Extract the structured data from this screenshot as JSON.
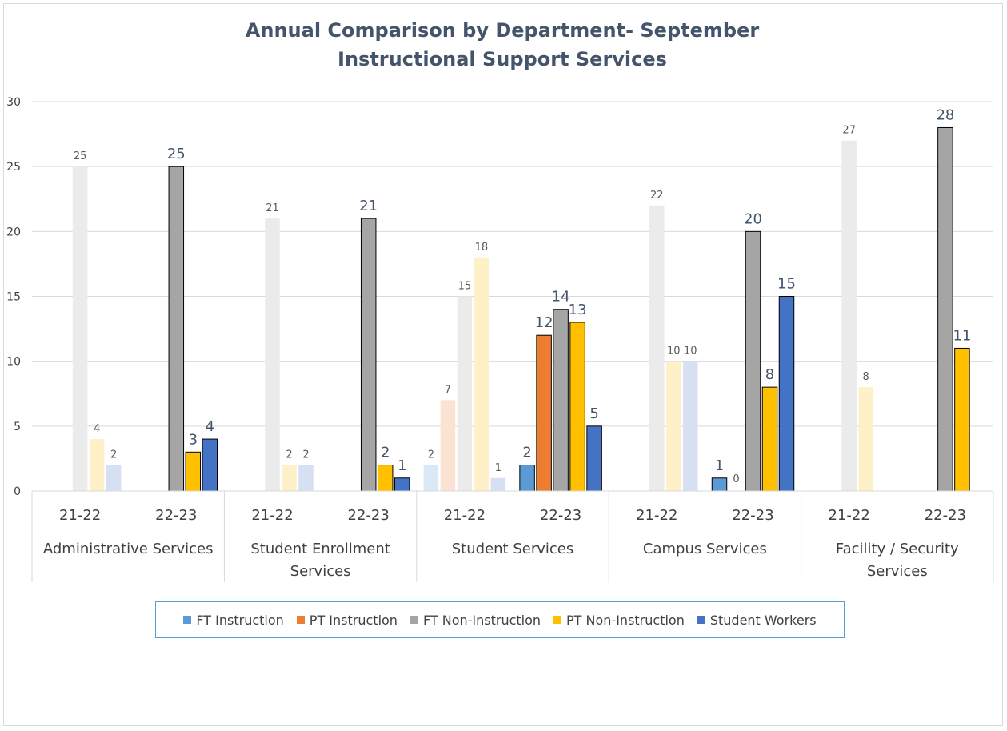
{
  "chart_data": {
    "type": "bar",
    "title": "Annual Comparison by Department- September",
    "subtitle": "Instructional Support Services",
    "ylim": [
      0,
      30
    ],
    "yticks": [
      0,
      5,
      10,
      15,
      20,
      25,
      30
    ],
    "grid": true,
    "legend_position": "bottom",
    "groups": [
      "Administrative Services",
      "Student Enrollment Services",
      "Student Services",
      "Campus Services",
      "Facility / Security Services"
    ],
    "categories": [
      "21-22",
      "22-23",
      "21-22",
      "22-23",
      "21-22",
      "22-23",
      "21-22",
      "22-23",
      "21-22",
      "22-23"
    ],
    "series": [
      {
        "name": "FT Instruction",
        "color": "#5b9bd5",
        "values": [
          null,
          null,
          null,
          null,
          2,
          2,
          null,
          1,
          null,
          null
        ]
      },
      {
        "name": "PT Instruction",
        "color": "#ed7d31",
        "values": [
          null,
          null,
          null,
          null,
          7,
          12,
          null,
          null,
          null,
          null
        ]
      },
      {
        "name": "FT Non-Instruction",
        "color": "#a5a5a5",
        "values": [
          25,
          25,
          21,
          21,
          15,
          14,
          22,
          20,
          27,
          28
        ]
      },
      {
        "name": "PT Non-Instruction",
        "color": "#ffc000",
        "values": [
          4,
          3,
          2,
          2,
          18,
          13,
          10,
          8,
          8,
          11
        ]
      },
      {
        "name": "Student Workers",
        "color": "#4472c4",
        "values": [
          2,
          4,
          2,
          1,
          1,
          5,
          10,
          15,
          null,
          null
        ]
      }
    ],
    "zero_labels": [
      {
        "series": 1,
        "category": 7,
        "value": 0
      }
    ]
  }
}
